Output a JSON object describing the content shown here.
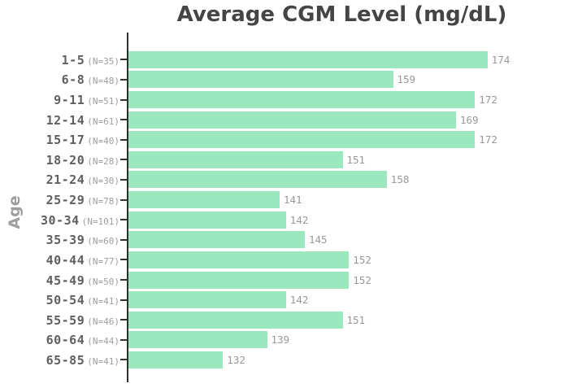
{
  "title": "Average CGM Level (mg/dL)",
  "y_axis_label": "Age",
  "colors": {
    "bar": "#9ce8be",
    "title_text": "#454545",
    "axis_line": "#2e2e2e",
    "age_label": "#5f5f5f",
    "sample_size_label": "#9e9e9e",
    "value_label": "#989898",
    "background": "#ffffff"
  },
  "chart_data": {
    "type": "bar",
    "orientation": "horizontal",
    "title": "Average CGM Level (mg/dL)",
    "xlabel": "",
    "ylabel": "Age",
    "categories": [
      "1-5",
      "6-8",
      "9-11",
      "12-14",
      "15-17",
      "18-20",
      "21-24",
      "25-29",
      "30-34",
      "35-39",
      "40-44",
      "45-49",
      "50-54",
      "55-59",
      "60-64",
      "65-85"
    ],
    "sample_sizes": [
      "(N=35)",
      "(N=48)",
      "(N=51)",
      "(N=61)",
      "(N=40)",
      "(N=28)",
      "(N=30)",
      "(N=78)",
      "(N=101)",
      "(N=60)",
      "(N=77)",
      "(N=50)",
      "(N=41)",
      "(N=46)",
      "(N=44)",
      "(N=41)"
    ],
    "values": [
      174,
      159,
      172,
      169,
      172,
      151,
      158,
      141,
      142,
      145,
      152,
      152,
      142,
      151,
      139,
      132
    ],
    "xlim": [
      117,
      185
    ],
    "grid": false,
    "legend": false,
    "value_labels_shown": true
  }
}
